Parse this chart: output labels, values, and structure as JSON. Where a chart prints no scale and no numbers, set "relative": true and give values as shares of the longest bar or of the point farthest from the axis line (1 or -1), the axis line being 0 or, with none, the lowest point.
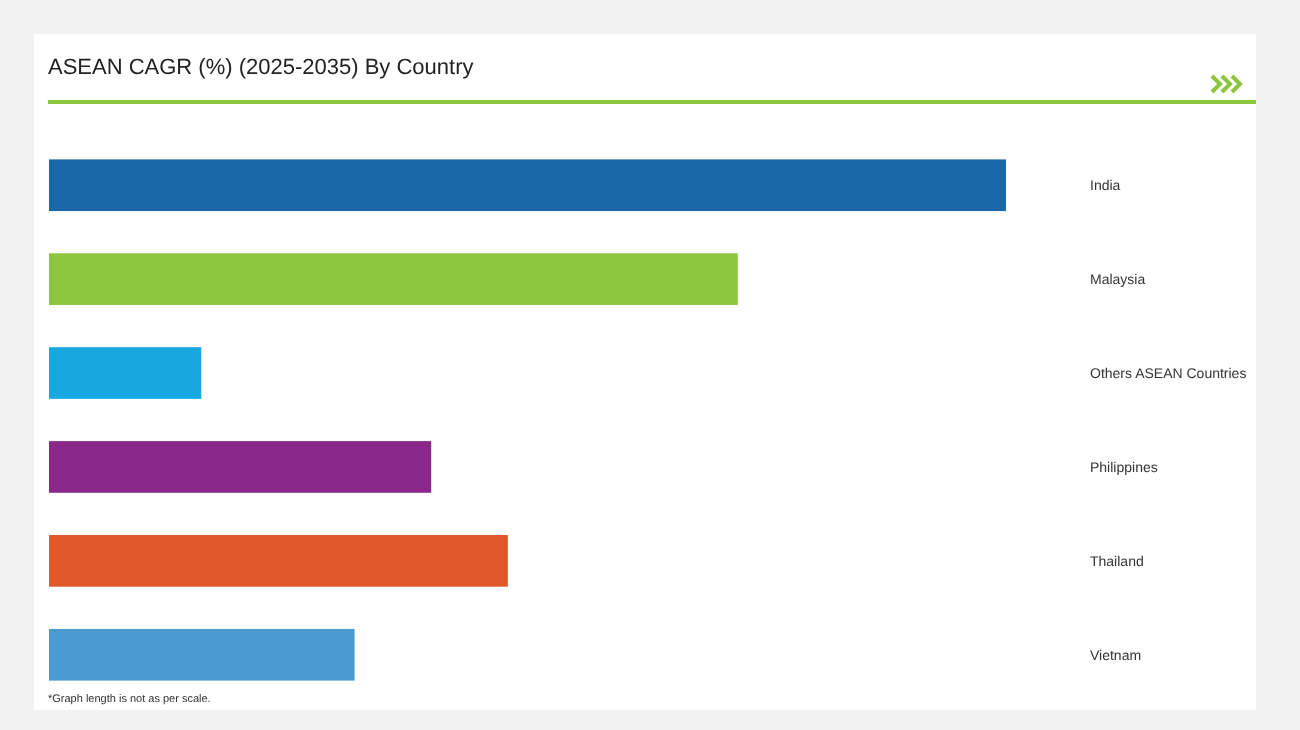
{
  "chart_data": {
    "type": "bar",
    "title": "ASEAN CAGR (%) (2025-2035) By Country",
    "orientation": "horizontal",
    "relative": true,
    "categories": [
      "India",
      "Malaysia",
      "Others ASEAN Countries",
      "Philippines",
      "Thailand",
      "Vietnam"
    ],
    "values": [
      1,
      0.72,
      0.16,
      0.4,
      0.48,
      0.32
    ],
    "colors": [
      "#1a67a8",
      "#8cc63f",
      "#18a8e0",
      "#8a2889",
      "#e0582a",
      "#4b9bd0"
    ],
    "annotations": [
      "*Graph length is not as per scale."
    ]
  }
}
